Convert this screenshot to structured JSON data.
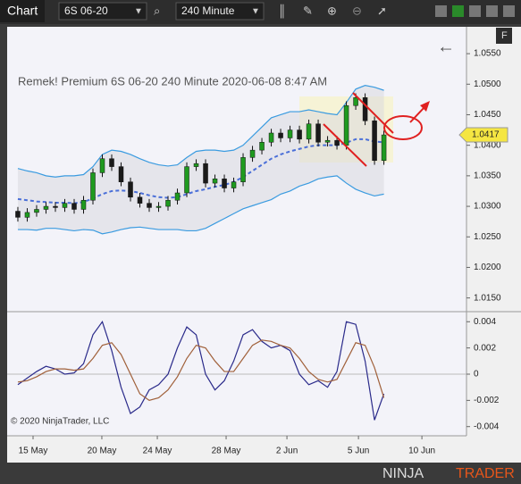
{
  "toolbar": {
    "title": "Chart",
    "instrument": "6S 06-20",
    "interval": "240 Minute",
    "button": "F"
  },
  "copyright": "© 2020 NinjaTrader, LLC",
  "logo": {
    "ninja": "NINJA",
    "trader": "TRADER"
  },
  "chart_data": [
    {
      "type": "candlestick",
      "title": "Remek!  Premium  6S 06-20  240 Minute  2020-06-08 8:47 AM",
      "open": [
        1.0292,
        1.0282,
        1.029,
        1.0295,
        1.03,
        1.0298,
        1.0305,
        1.0295,
        1.031,
        1.0355,
        1.0378,
        1.0365,
        1.034,
        1.0315,
        1.0305,
        1.0298,
        1.03,
        1.031,
        1.0322,
        1.0365,
        1.037,
        1.0338,
        1.0345,
        1.033,
        1.034,
        1.038,
        1.0392,
        1.0405,
        1.042,
        1.0412,
        1.0425,
        1.041,
        1.0435,
        1.0405,
        1.0408,
        1.04,
        1.0465,
        1.0478,
        1.044,
        1.0375
      ],
      "high": [
        1.0299,
        1.0297,
        1.0302,
        1.0307,
        1.0307,
        1.0312,
        1.0312,
        1.0317,
        1.0362,
        1.0385,
        1.0385,
        1.0372,
        1.0347,
        1.0322,
        1.0312,
        1.0307,
        1.0317,
        1.0329,
        1.0372,
        1.0377,
        1.0377,
        1.0352,
        1.0352,
        1.0347,
        1.0387,
        1.0399,
        1.0412,
        1.0427,
        1.0427,
        1.0432,
        1.0432,
        1.0442,
        1.0442,
        1.0415,
        1.0415,
        1.0472,
        1.0485,
        1.0485,
        1.0447,
        1.0424
      ],
      "low": [
        1.0275,
        1.0275,
        1.0283,
        1.0288,
        1.0291,
        1.0291,
        1.0288,
        1.0288,
        1.0303,
        1.0348,
        1.0358,
        1.0333,
        1.0308,
        1.0298,
        1.0291,
        1.0291,
        1.0293,
        1.0303,
        1.0315,
        1.0358,
        1.0331,
        1.0331,
        1.0323,
        1.0323,
        1.0333,
        1.0373,
        1.0385,
        1.0398,
        1.0405,
        1.0405,
        1.0403,
        1.0403,
        1.0398,
        1.0398,
        1.0393,
        1.0393,
        1.0458,
        1.0433,
        1.0368,
        1.0368
      ],
      "close": [
        1.0282,
        1.029,
        1.0295,
        1.03,
        1.0298,
        1.0305,
        1.0295,
        1.031,
        1.0355,
        1.0378,
        1.0365,
        1.034,
        1.0315,
        1.0305,
        1.0298,
        1.03,
        1.031,
        1.0322,
        1.0365,
        1.037,
        1.0338,
        1.0345,
        1.033,
        1.034,
        1.038,
        1.0392,
        1.0405,
        1.042,
        1.0412,
        1.0425,
        1.041,
        1.0435,
        1.0405,
        1.0408,
        1.04,
        1.0465,
        1.0478,
        1.044,
        1.0375,
        1.0417
      ],
      "up_color": "#1f9a1f",
      "down_color": "#1a1a1a",
      "bands": {
        "upper": [
          1.0362,
          1.0358,
          1.0355,
          1.035,
          1.0348,
          1.035,
          1.035,
          1.0352,
          1.0365,
          1.0385,
          1.0392,
          1.039,
          1.0385,
          1.0378,
          1.0372,
          1.0368,
          1.0366,
          1.0368,
          1.038,
          1.039,
          1.0392,
          1.0392,
          1.039,
          1.0392,
          1.04,
          1.0415,
          1.043,
          1.0445,
          1.045,
          1.0455,
          1.0455,
          1.0458,
          1.0455,
          1.0452,
          1.045,
          1.047,
          1.0492,
          1.0498,
          1.0495,
          1.049
        ],
        "middle": [
          1.0312,
          1.031,
          1.0308,
          1.0307,
          1.0306,
          1.0306,
          1.0305,
          1.0307,
          1.0313,
          1.032,
          1.0325,
          1.0326,
          1.0325,
          1.0322,
          1.0318,
          1.0315,
          1.0314,
          1.0315,
          1.032,
          1.0325,
          1.0328,
          1.0332,
          1.0335,
          1.034,
          1.0348,
          1.0358,
          1.0368,
          1.0378,
          1.0385,
          1.039,
          1.0394,
          1.0398,
          1.04,
          1.04,
          1.04,
          1.0404,
          1.041,
          1.041,
          1.0406,
          1.0405
        ],
        "lower": [
          1.0262,
          1.0262,
          1.0261,
          1.0264,
          1.0264,
          1.0262,
          1.026,
          1.0262,
          1.0261,
          1.0255,
          1.0258,
          1.0262,
          1.0265,
          1.0266,
          1.0264,
          1.0262,
          1.0262,
          1.0262,
          1.026,
          1.026,
          1.0264,
          1.0272,
          1.028,
          1.0288,
          1.0296,
          1.0301,
          1.0306,
          1.0311,
          1.032,
          1.0325,
          1.0333,
          1.0338,
          1.0345,
          1.0348,
          1.035,
          1.0338,
          1.0328,
          1.0322,
          1.0317,
          1.032
        ],
        "band_color": "#3a9be0",
        "middle_color": "#4a6fd8"
      },
      "last_price": {
        "value": 1.0417,
        "label": "1.0417"
      },
      "xlim": [
        -1.14,
        47.8
      ],
      "xticks": [
        {
          "value": 1.62,
          "label": "15 May"
        },
        {
          "value": 8.95,
          "label": "20 May"
        },
        {
          "value": 14.86,
          "label": "24 May"
        },
        {
          "value": 22.19,
          "label": "28 May"
        },
        {
          "value": 28.67,
          "label": "2 Jun"
        },
        {
          "value": 36.29,
          "label": "5 Jun"
        },
        {
          "value": 43.05,
          "label": "10 Jun"
        }
      ],
      "ylim": [
        1.0129,
        1.0594
      ],
      "yticks": [
        {
          "value": 1.055,
          "label": "1.0550"
        },
        {
          "value": 1.05,
          "label": "1.0500"
        },
        {
          "value": 1.045,
          "label": "1.0450"
        },
        {
          "value": 1.04,
          "label": "1.0400"
        },
        {
          "value": 1.035,
          "label": "1.0350"
        },
        {
          "value": 1.03,
          "label": "1.0300"
        },
        {
          "value": 1.025,
          "label": "1.0250"
        },
        {
          "value": 1.02,
          "label": "1.0200"
        },
        {
          "value": 1.015,
          "label": "1.0150"
        }
      ],
      "grid": false
    },
    {
      "type": "line",
      "series": [
        {
          "name": "fast",
          "color": "#2a2a8a",
          "values": [
            -0.0008,
            -0.0003,
            0.0002,
            0.0006,
            0.0004,
            0.0,
            0.0001,
            0.0008,
            0.003,
            0.004,
            0.0018,
            -0.001,
            -0.003,
            -0.0025,
            -0.0012,
            -0.0008,
            0.0,
            0.002,
            0.0036,
            0.003,
            0.0,
            -0.0012,
            -0.0005,
            0.001,
            0.003,
            0.0034,
            0.0025,
            0.002,
            0.0022,
            0.0018,
            0.0,
            -0.0008,
            -0.0005,
            -0.001,
            0.0002,
            0.004,
            0.0038,
            0.001,
            -0.0035,
            -0.0015
          ]
        },
        {
          "name": "slow",
          "color": "#a0603a",
          "values": [
            -0.0006,
            -0.0005,
            -0.0002,
            0.0002,
            0.0004,
            0.0004,
            0.0003,
            0.0004,
            0.0012,
            0.0022,
            0.0024,
            0.0015,
            0.0,
            -0.0015,
            -0.002,
            -0.0018,
            -0.0012,
            -0.0002,
            0.0012,
            0.0022,
            0.002,
            0.001,
            0.0002,
            0.0002,
            0.0012,
            0.0022,
            0.0026,
            0.0025,
            0.0022,
            0.002,
            0.0012,
            0.0002,
            -0.0004,
            -0.0006,
            -0.0004,
            0.001,
            0.0024,
            0.0022,
            0.0005,
            -0.0018
          ]
        }
      ],
      "ylim": [
        -0.0047,
        0.0047
      ],
      "yticks": [
        0.004,
        0.002,
        0,
        -0.002,
        -0.004
      ],
      "zero_line": 0
    }
  ]
}
